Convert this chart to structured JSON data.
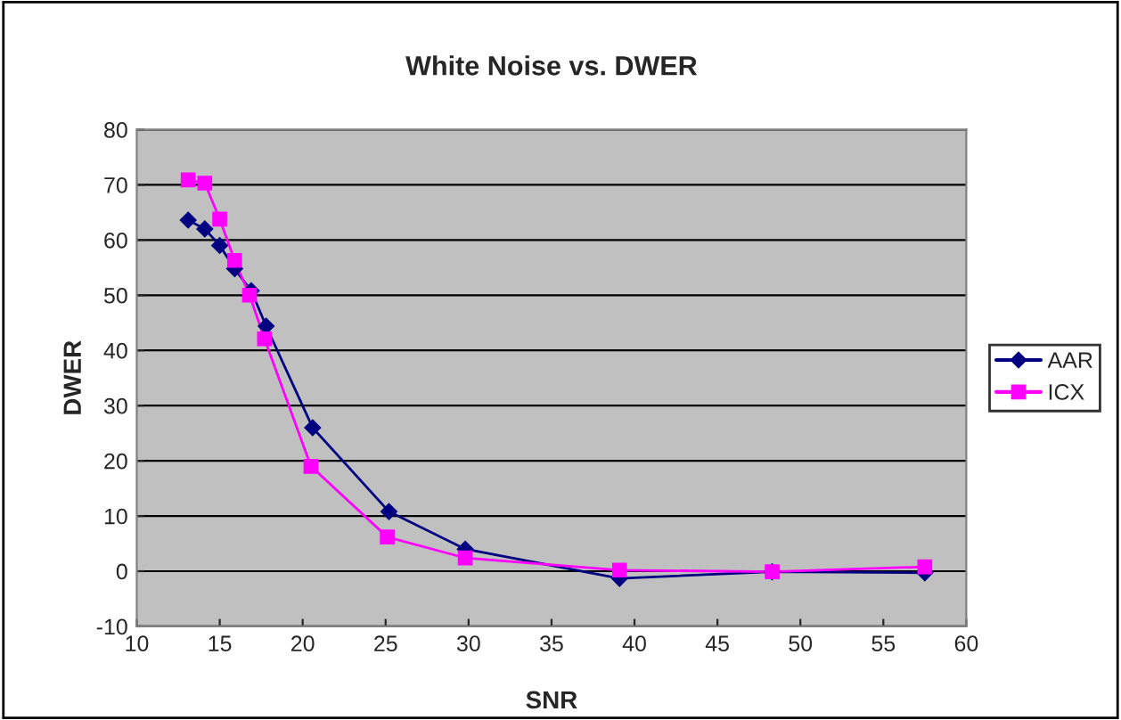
{
  "chart_data": {
    "type": "line",
    "title": "White Noise vs. DWER",
    "xlabel": "SNR",
    "ylabel": "DWER",
    "xlim": [
      10,
      60
    ],
    "xticks": [
      10,
      15,
      20,
      25,
      30,
      35,
      40,
      45,
      50,
      55,
      60
    ],
    "ylim": [
      -10,
      80
    ],
    "yticks": [
      -10,
      0,
      10,
      20,
      30,
      40,
      50,
      60,
      70,
      80
    ],
    "grid": "y",
    "legend": "right",
    "line_style": "solid",
    "series": [
      {
        "name": "AAR",
        "color": "#000080",
        "marker": "diamond",
        "x": [
          13.1,
          14.1,
          15.0,
          15.9,
          16.9,
          17.8,
          20.6,
          25.2,
          29.8,
          39.1,
          48.3,
          57.5
        ],
        "values": [
          63.6,
          62,
          59,
          54.8,
          50.8,
          44.4,
          26,
          10.8,
          4,
          -1.3,
          -0.1,
          -0.3
        ]
      },
      {
        "name": "ICX",
        "color": "#ff00ff",
        "marker": "square",
        "x": [
          13.1,
          14.1,
          15.0,
          15.9,
          16.8,
          17.7,
          20.5,
          25.1,
          29.8,
          39.1,
          48.3,
          57.5
        ],
        "values": [
          70.9,
          70.3,
          63.8,
          56.3,
          50,
          42.1,
          19,
          6.2,
          2.4,
          0.2,
          -0.1,
          0.8
        ]
      }
    ]
  }
}
